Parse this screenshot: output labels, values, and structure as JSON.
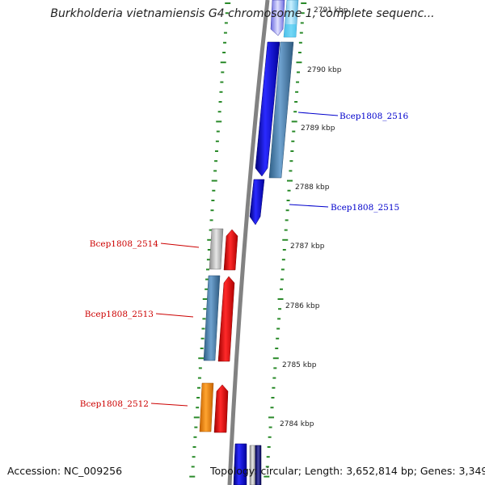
{
  "title": "Burkholderia vietnamiensis G4 chromosome 1, complete sequenc...",
  "footer": {
    "accession": "Accession: NC_009256",
    "summary": "Topology: circular; Length: 3,652,814 bp; Genes: 3,349"
  },
  "ticks": [
    {
      "label": "2791 kbp",
      "faded": true
    },
    {
      "label": "2790 kbp"
    },
    {
      "label": "2789 kbp"
    },
    {
      "label": "2788 kbp"
    },
    {
      "label": "2787 kbp"
    },
    {
      "label": "2786 kbp"
    },
    {
      "label": "2785 kbp"
    },
    {
      "label": "2784 kbp"
    }
  ],
  "gene_labels": [
    {
      "text": "Bcep1808_2516",
      "color": "#0000cc"
    },
    {
      "text": "Bcep1808_2515",
      "color": "#0000cc"
    },
    {
      "text": "Bcep1808_2514",
      "color": "#cc0000"
    },
    {
      "text": "Bcep1808_2513",
      "color": "#cc0000"
    },
    {
      "text": "Bcep1808_2512",
      "color": "#cc0000"
    }
  ],
  "colors": {
    "backbone": "#808080",
    "tick_green": "#2a8a2a",
    "forward_strand": "#0000ff",
    "reverse_strand": "#ff0000",
    "steelblue": "#4682b4",
    "lightblue": "#87ceeb",
    "gray": "#b8b8b8",
    "orange": "#ff8c00",
    "navy": "#000080"
  }
}
